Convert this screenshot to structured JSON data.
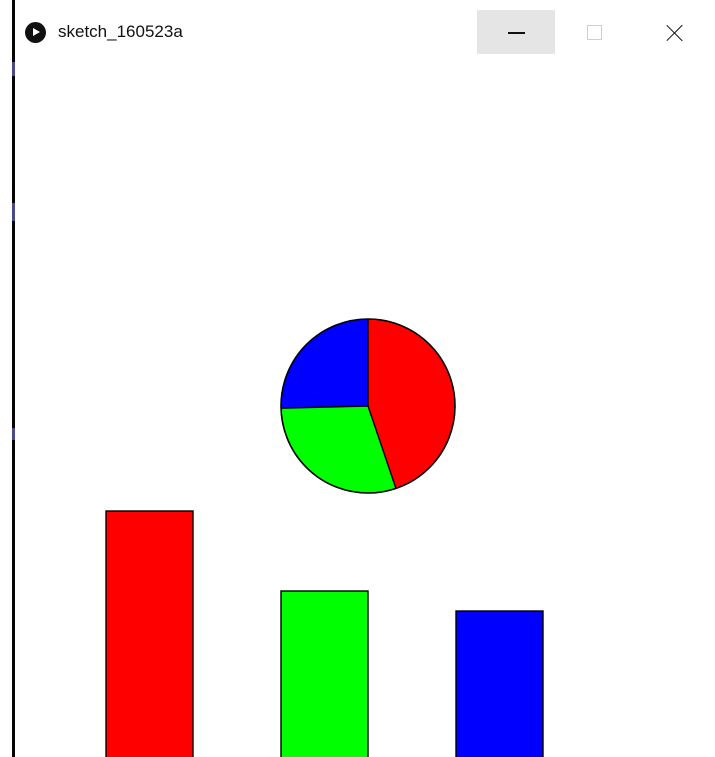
{
  "window": {
    "title": "sketch_160523a",
    "buttons": {
      "minimize": "minimize",
      "maximize": "maximize",
      "close": "close"
    }
  },
  "icons": {
    "app": "processing-play-icon",
    "minimize": "minimize-icon",
    "maximize": "maximize-icon",
    "close": "close-icon"
  },
  "colors": {
    "red": "#ff0000",
    "green": "#00ff00",
    "blue": "#0000ff",
    "outline": "#000000",
    "minimize_hover_bg": "#e5e5e5"
  },
  "chart_data": [
    {
      "type": "pie",
      "slices": [
        {
          "color": "#ff0000",
          "value": 0.448
        },
        {
          "color": "#00ff00",
          "value": 0.298
        },
        {
          "color": "#0000ff",
          "value": 0.254
        }
      ]
    },
    {
      "type": "bar",
      "categories": [
        "",
        "",
        ""
      ],
      "values": [
        3,
        2,
        1.75
      ],
      "colors": [
        "#ff0000",
        "#00ff00",
        "#0000ff"
      ]
    }
  ]
}
